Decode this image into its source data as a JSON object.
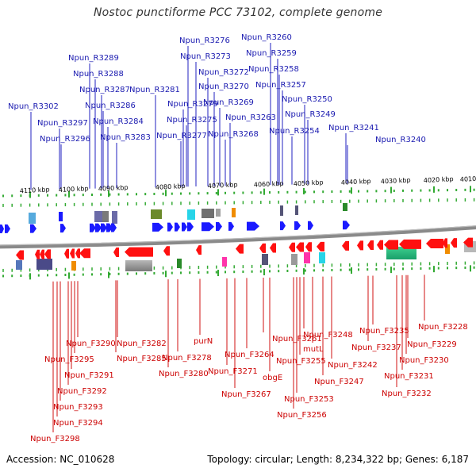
{
  "title": "Nostoc punctiforme PCC 73102, complete genome",
  "accession_label": "Accession: NC_010628",
  "summary": {
    "topology": "Topology: circular",
    "length": "Length: 8,234,322 bp",
    "genes": "Genes: 6,187"
  },
  "colors": {
    "forward_gene": "#1a1aff",
    "reverse_gene": "#ff1010",
    "forward_label": "#1a1ab0",
    "reverse_label": "#cc0000",
    "backbone": "#8a8a8a",
    "scale_tick": "#33aa33"
  },
  "kbp_ticks": [
    "4110 kbp",
    "4100 kbp",
    "4090 kbp",
    "4080 kbp",
    "4070 kbp",
    "4060 kbp",
    "4050 kbp",
    "4040 kbp",
    "4030 kbp",
    "4020 kbp",
    "4010 kbp"
  ],
  "forward_genes": [
    "Npun_R3302",
    "Npun_R3297",
    "Npun_R3296",
    "Npun_R3289",
    "Npun_R3288",
    "Npun_R3287",
    "Npun_R3286",
    "Npun_R3284",
    "Npun_R3283",
    "Npun_R3281",
    "Npun_R3279",
    "Npun_R3277",
    "Npun_R3276",
    "Npun_R3275",
    "Npun_R3273",
    "Npun_R3272",
    "Npun_R3270",
    "Npun_R3269",
    "Npun_R3268",
    "Npun_R3263",
    "Npun_R3260",
    "Npun_R3259",
    "Npun_R3258",
    "Npun_R3257",
    "Npun_R3254",
    "Npun_R3250",
    "Npun_R3249",
    "Npun_R3241",
    "Npun_R3240"
  ],
  "reverse_genes": [
    "Npun_F3298",
    "Npun_F3294",
    "Npun_F3293",
    "Npun_F3292",
    "Npun_F3291",
    "Npun_F3295",
    "Npun_F3290",
    "Npun_F3285",
    "Npun_F3282",
    "Npun_F3280",
    "Npun_F3278",
    "purN",
    "Npun_F3271",
    "Npun_F3267",
    "Npun_F3264",
    "obgE",
    "Npun_F3261",
    "Npun_F3256",
    "Npun_F3253",
    "Npun_F3255",
    "mutL",
    "Npun_F3248",
    "Npun_F3247",
    "Npun_F3242",
    "Npun_F3237",
    "Npun_F3235",
    "Npun_F3232",
    "Npun_F3231",
    "Npun_F3230",
    "Npun_F3229",
    "Npun_F3228"
  ]
}
